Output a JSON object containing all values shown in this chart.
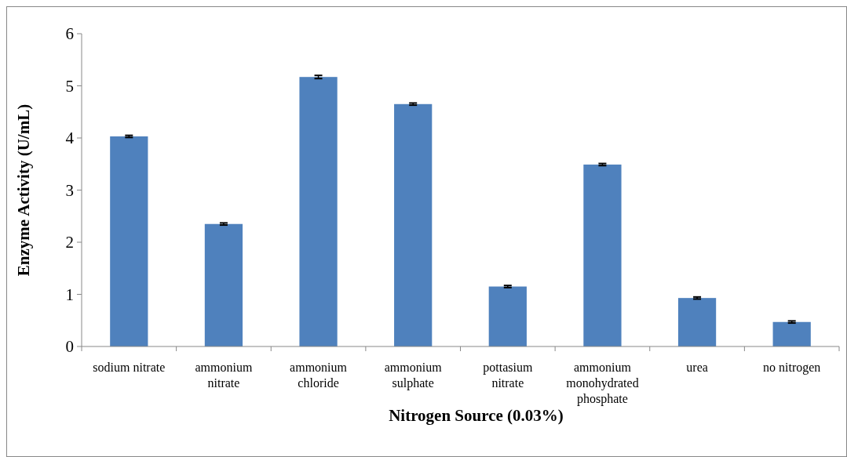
{
  "chart_data": {
    "type": "bar",
    "xlabel": "Nitrogen Source (0.03%)",
    "ylabel": "Enzyme Activity (U/mL)",
    "categories": [
      "sodium nitrate",
      "ammonium nitrate",
      "ammonium chloride",
      "ammonium sulphate",
      "pottasium nitrate",
      "ammonium monohydrated phosphate",
      "urea",
      "no nitrogen"
    ],
    "values": [
      4.03,
      2.35,
      5.17,
      4.65,
      1.15,
      3.49,
      0.93,
      0.47
    ],
    "errors": [
      0.02,
      0.02,
      0.03,
      0.02,
      0.02,
      0.02,
      0.02,
      0.02
    ],
    "color": "#4f81bd",
    "ylim": [
      0,
      6
    ],
    "yticks": [
      0,
      1,
      2,
      3,
      4,
      5,
      6
    ],
    "grid": false
  }
}
